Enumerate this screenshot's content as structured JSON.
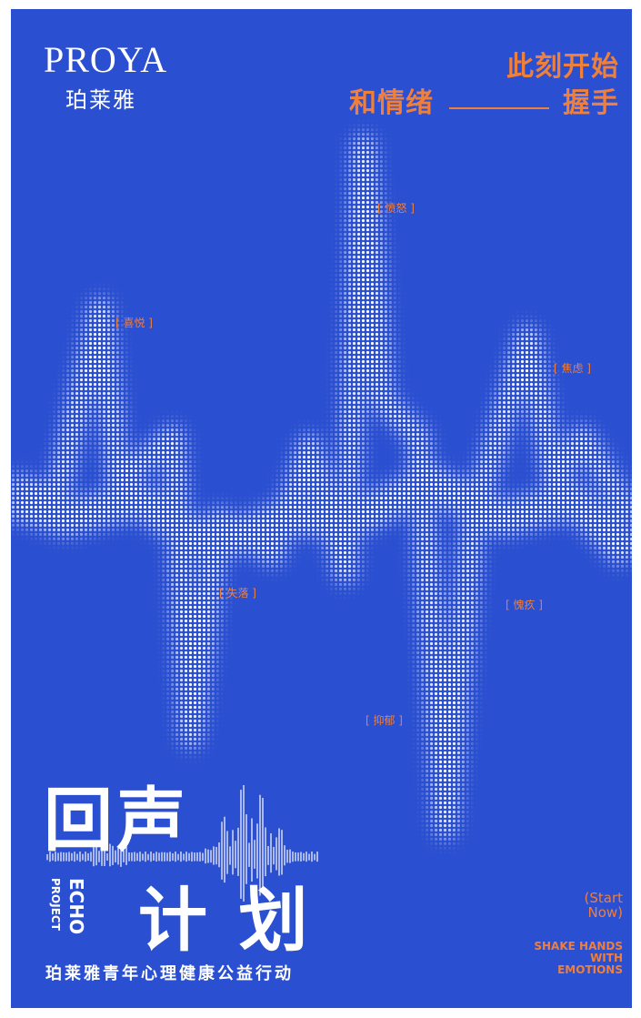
{
  "brand": {
    "name": "PROYA",
    "name_cn": "珀莱雅"
  },
  "headline": {
    "line1": "此刻开始",
    "line2_start": "和情绪",
    "line2_end": "握手"
  },
  "emotions": [
    "[ 愤怒 ]",
    "[ 喜悦 ]",
    "[ 焦虑 ]",
    "[ 失落 ]",
    "[ 愧疚 ]",
    "[ 抑郁 ]"
  ],
  "title": {
    "main1": "回声",
    "main2": "计 划",
    "echo": "ECHO",
    "project": "PROJECT",
    "subtitle": "珀莱雅青年心理健康公益行动"
  },
  "cta": {
    "start": "(Start",
    "now": "Now)",
    "shake": [
      "SHAKE HANDS",
      "WITH",
      "EMOTIONS"
    ]
  }
}
